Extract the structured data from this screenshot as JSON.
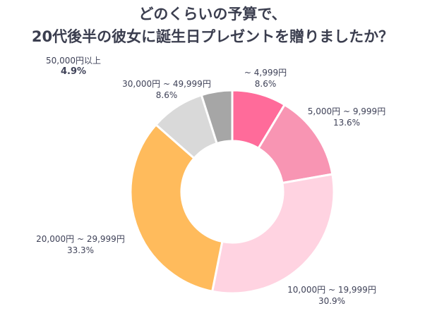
{
  "header": {
    "line1": "どのくらいの予算で、",
    "line2": "20代後半の彼女に誕生日プレゼントを贈りましたか？"
  },
  "chart_data": {
    "type": "pie",
    "donut": true,
    "categories": [
      "~ 4,999円",
      "5,000円 ~ 9,999円",
      "10,000円 ~ 19,999円",
      "20,000円 ~ 29,999円",
      "30,000円 ~ 49,999円",
      "50,000円以上"
    ],
    "values": [
      8.6,
      13.6,
      30.9,
      33.3,
      8.6,
      4.9
    ],
    "value_labels": [
      "8.6%",
      "13.6%",
      "30.9%",
      "33.3%",
      "8.6%",
      "4.9%"
    ],
    "colors": [
      "#ff6b9a",
      "#f895b3",
      "#ffd3e1",
      "#ffbb5c",
      "#d9d9d9",
      "#a6a6a6"
    ],
    "start_angle_deg": 0,
    "direction": "clockwise"
  }
}
